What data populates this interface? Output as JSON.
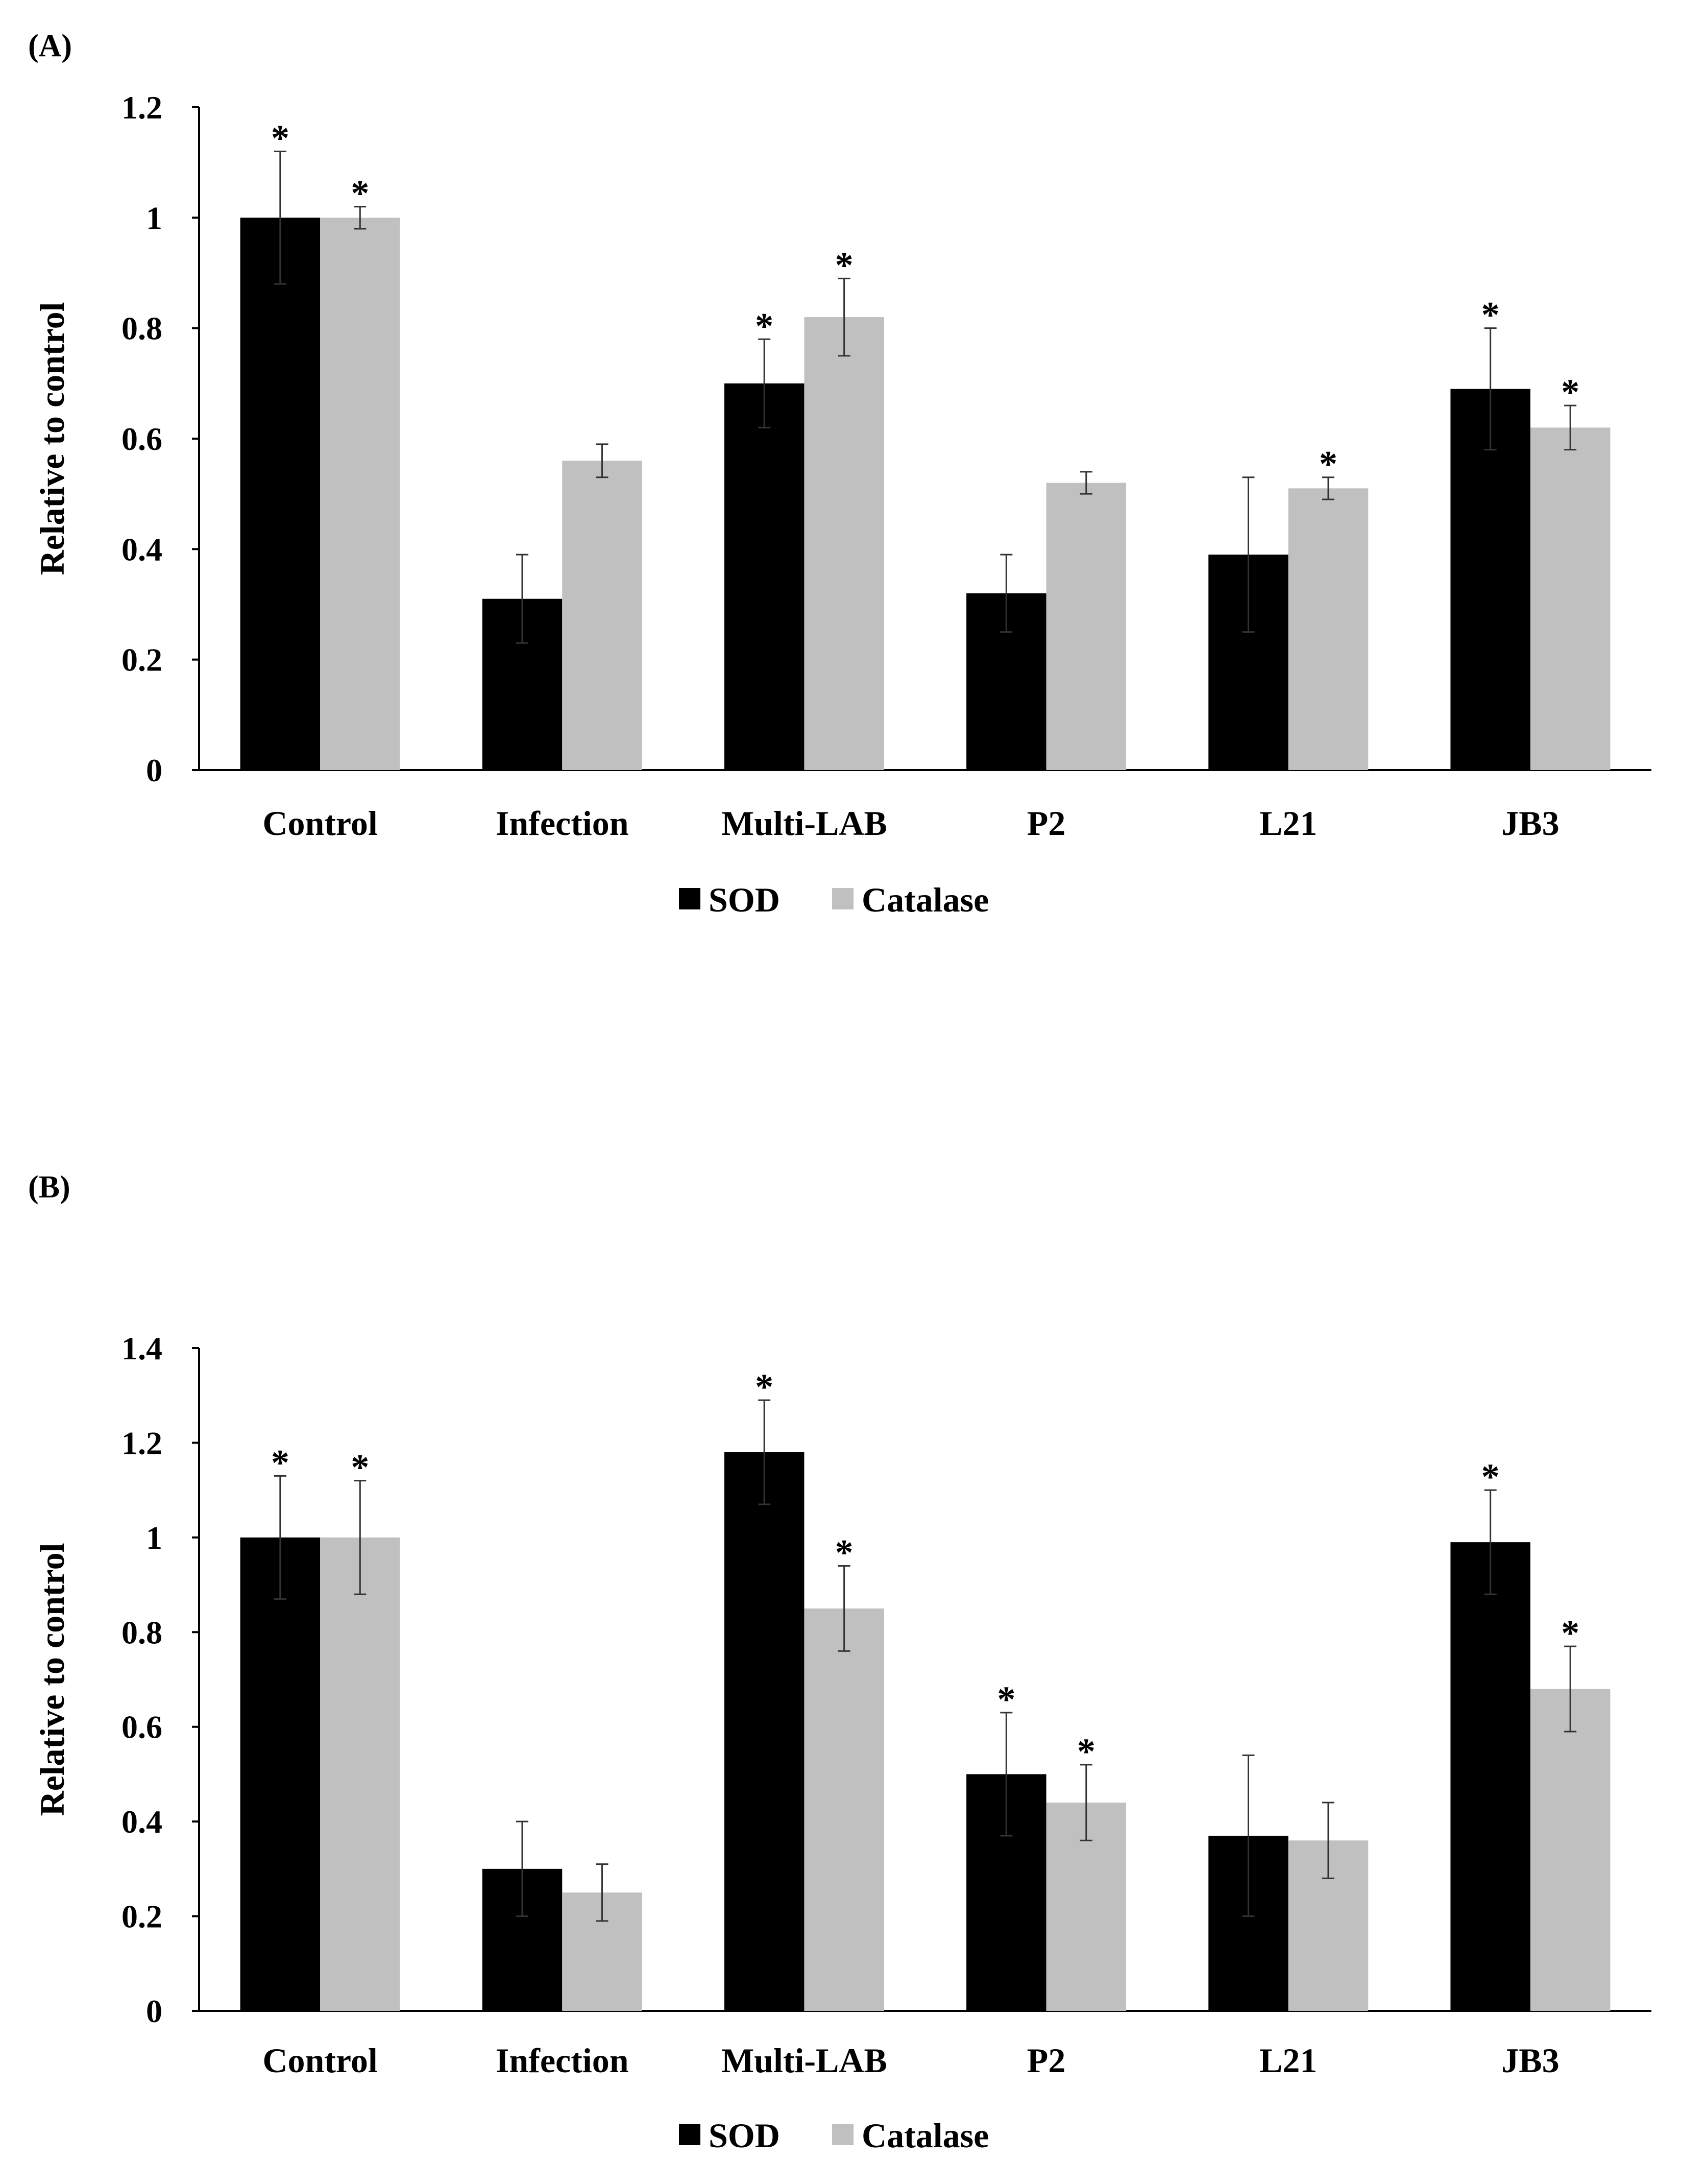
{
  "colors": {
    "sod": "#000000",
    "catalase": "#c0c0c0",
    "axis": "#000000",
    "background": "#ffffff"
  },
  "chart_data": [
    {
      "panel_label": "(A)",
      "type": "bar",
      "ylabel": "Relative to control",
      "ylim": [
        0,
        1.2
      ],
      "yticks": [
        "0",
        "0.2",
        "0.4",
        "0.6",
        "0.8",
        "1",
        "1.2"
      ],
      "categories": [
        "Control",
        "Infection",
        "Multi-LAB",
        "P2",
        "L21",
        "JB3"
      ],
      "legend_placement": "bottom-center",
      "series": [
        {
          "name": "SOD",
          "values": [
            1.0,
            0.31,
            0.7,
            0.32,
            0.39,
            0.69
          ],
          "error": [
            0.12,
            0.08,
            0.08,
            0.07,
            0.14,
            0.11
          ],
          "significant": [
            true,
            false,
            true,
            false,
            false,
            true
          ]
        },
        {
          "name": "Catalase",
          "values": [
            1.0,
            0.56,
            0.82,
            0.52,
            0.51,
            0.62
          ],
          "error": [
            0.02,
            0.03,
            0.07,
            0.02,
            0.02,
            0.04
          ],
          "significant": [
            true,
            false,
            true,
            false,
            true,
            true
          ]
        }
      ]
    },
    {
      "panel_label": "(B)",
      "type": "bar",
      "ylabel": "Relative to control",
      "ylim": [
        0,
        1.4
      ],
      "yticks": [
        "0",
        "0.2",
        "0.4",
        "0.6",
        "0.8",
        "1",
        "1.2",
        "1.4"
      ],
      "categories": [
        "Control",
        "Infection",
        "Multi-LAB",
        "P2",
        "L21",
        "JB3"
      ],
      "legend_placement": "bottom-center",
      "series": [
        {
          "name": "SOD",
          "values": [
            1.0,
            0.3,
            1.18,
            0.5,
            0.37,
            0.99
          ],
          "error": [
            0.13,
            0.1,
            0.11,
            0.13,
            0.17,
            0.11
          ],
          "significant": [
            true,
            false,
            true,
            true,
            false,
            true
          ]
        },
        {
          "name": "Catalase",
          "values": [
            1.0,
            0.25,
            0.85,
            0.44,
            0.36,
            0.68
          ],
          "error": [
            0.12,
            0.06,
            0.09,
            0.08,
            0.08,
            0.09
          ],
          "significant": [
            true,
            false,
            true,
            true,
            false,
            true
          ]
        }
      ]
    }
  ]
}
